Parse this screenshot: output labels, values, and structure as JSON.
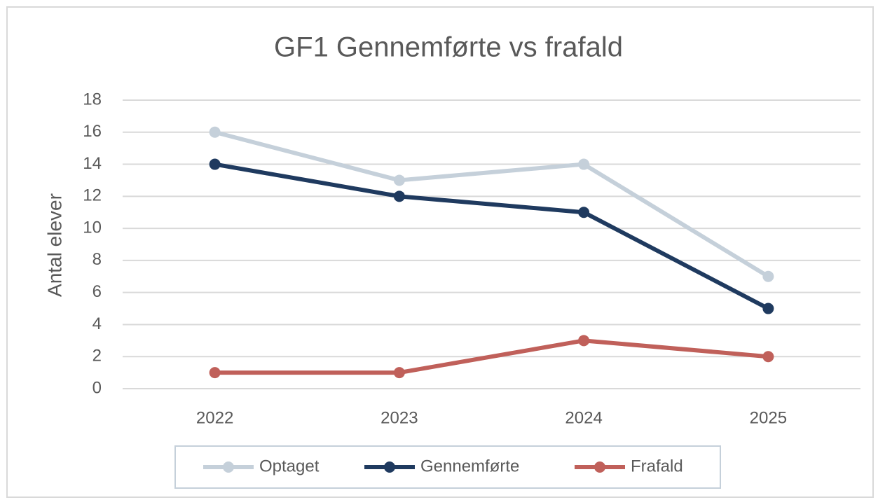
{
  "chart_data": {
    "type": "line",
    "title": "GF1 Gennemførte vs frafald",
    "y_label": "Antal elever",
    "categories": [
      "2022",
      "2023",
      "2024",
      "2025"
    ],
    "series": [
      {
        "name": "Optaget",
        "color": "#c5d0da",
        "values": [
          16,
          13,
          14,
          7
        ]
      },
      {
        "name": "Gennemførte",
        "color": "#1f3a5f",
        "values": [
          14,
          12,
          11,
          5
        ]
      },
      {
        "name": "Frafald",
        "color": "#c0605a",
        "values": [
          1,
          1,
          3,
          2
        ]
      }
    ],
    "ylim": [
      0,
      18
    ],
    "yticks": [
      0,
      2,
      4,
      6,
      8,
      10,
      12,
      14,
      16,
      18
    ],
    "grid": true,
    "legend": "bottom"
  }
}
